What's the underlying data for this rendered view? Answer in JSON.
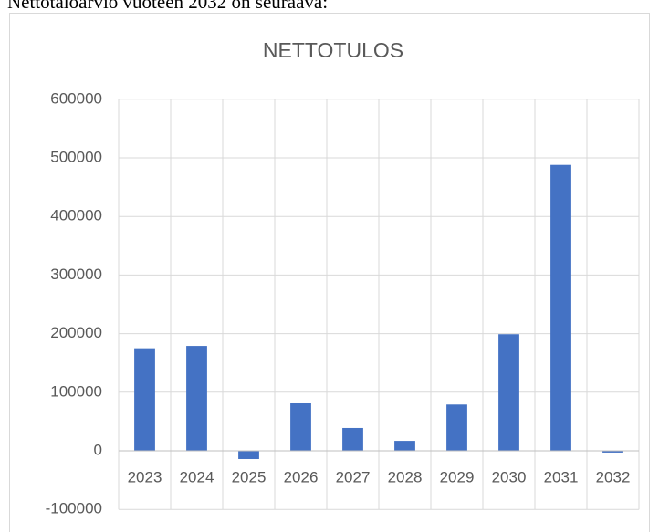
{
  "caption": "Nettotaloarvio vuoteen 2032 on seuraava:",
  "chart_data": {
    "type": "bar",
    "title": "NETTOTULOS",
    "categories": [
      "2023",
      "2024",
      "2025",
      "2026",
      "2027",
      "2028",
      "2029",
      "2030",
      "2031",
      "2032"
    ],
    "values": [
      175000,
      179000,
      -14000,
      81000,
      39000,
      17000,
      79000,
      199000,
      488000,
      -3000
    ],
    "color": "#4472c4",
    "ylim": [
      -100000,
      600000
    ],
    "yticks": [
      -100000,
      0,
      100000,
      200000,
      300000,
      400000,
      500000,
      600000
    ],
    "grid": true
  }
}
